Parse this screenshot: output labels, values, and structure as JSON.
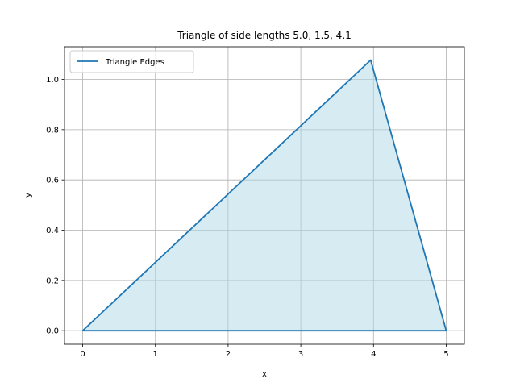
{
  "chart_data": {
    "type": "line",
    "title": "Triangle of side lengths 5.0, 1.5, 4.1",
    "xlabel": "x",
    "ylabel": "y",
    "xlim": [
      -0.25,
      5.25
    ],
    "ylim": [
      -0.054,
      1.13
    ],
    "xticks": [
      0,
      1,
      2,
      3,
      4,
      5
    ],
    "yticks": [
      0.0,
      0.2,
      0.4,
      0.6,
      0.8,
      1.0
    ],
    "xtick_labels": [
      "0",
      "1",
      "2",
      "3",
      "4",
      "5"
    ],
    "ytick_labels": [
      "0.0",
      "0.2",
      "0.4",
      "0.6",
      "0.8",
      "1.0"
    ],
    "grid": true,
    "legend_position": "top-left",
    "series": [
      {
        "name": "Triangle Edges",
        "color": "#1f77b4",
        "x": [
          0,
          5.0,
          3.961,
          0
        ],
        "y": [
          0,
          0,
          1.077,
          0
        ]
      }
    ],
    "fill": {
      "color": "#add8e6",
      "alpha": 0.5
    }
  }
}
